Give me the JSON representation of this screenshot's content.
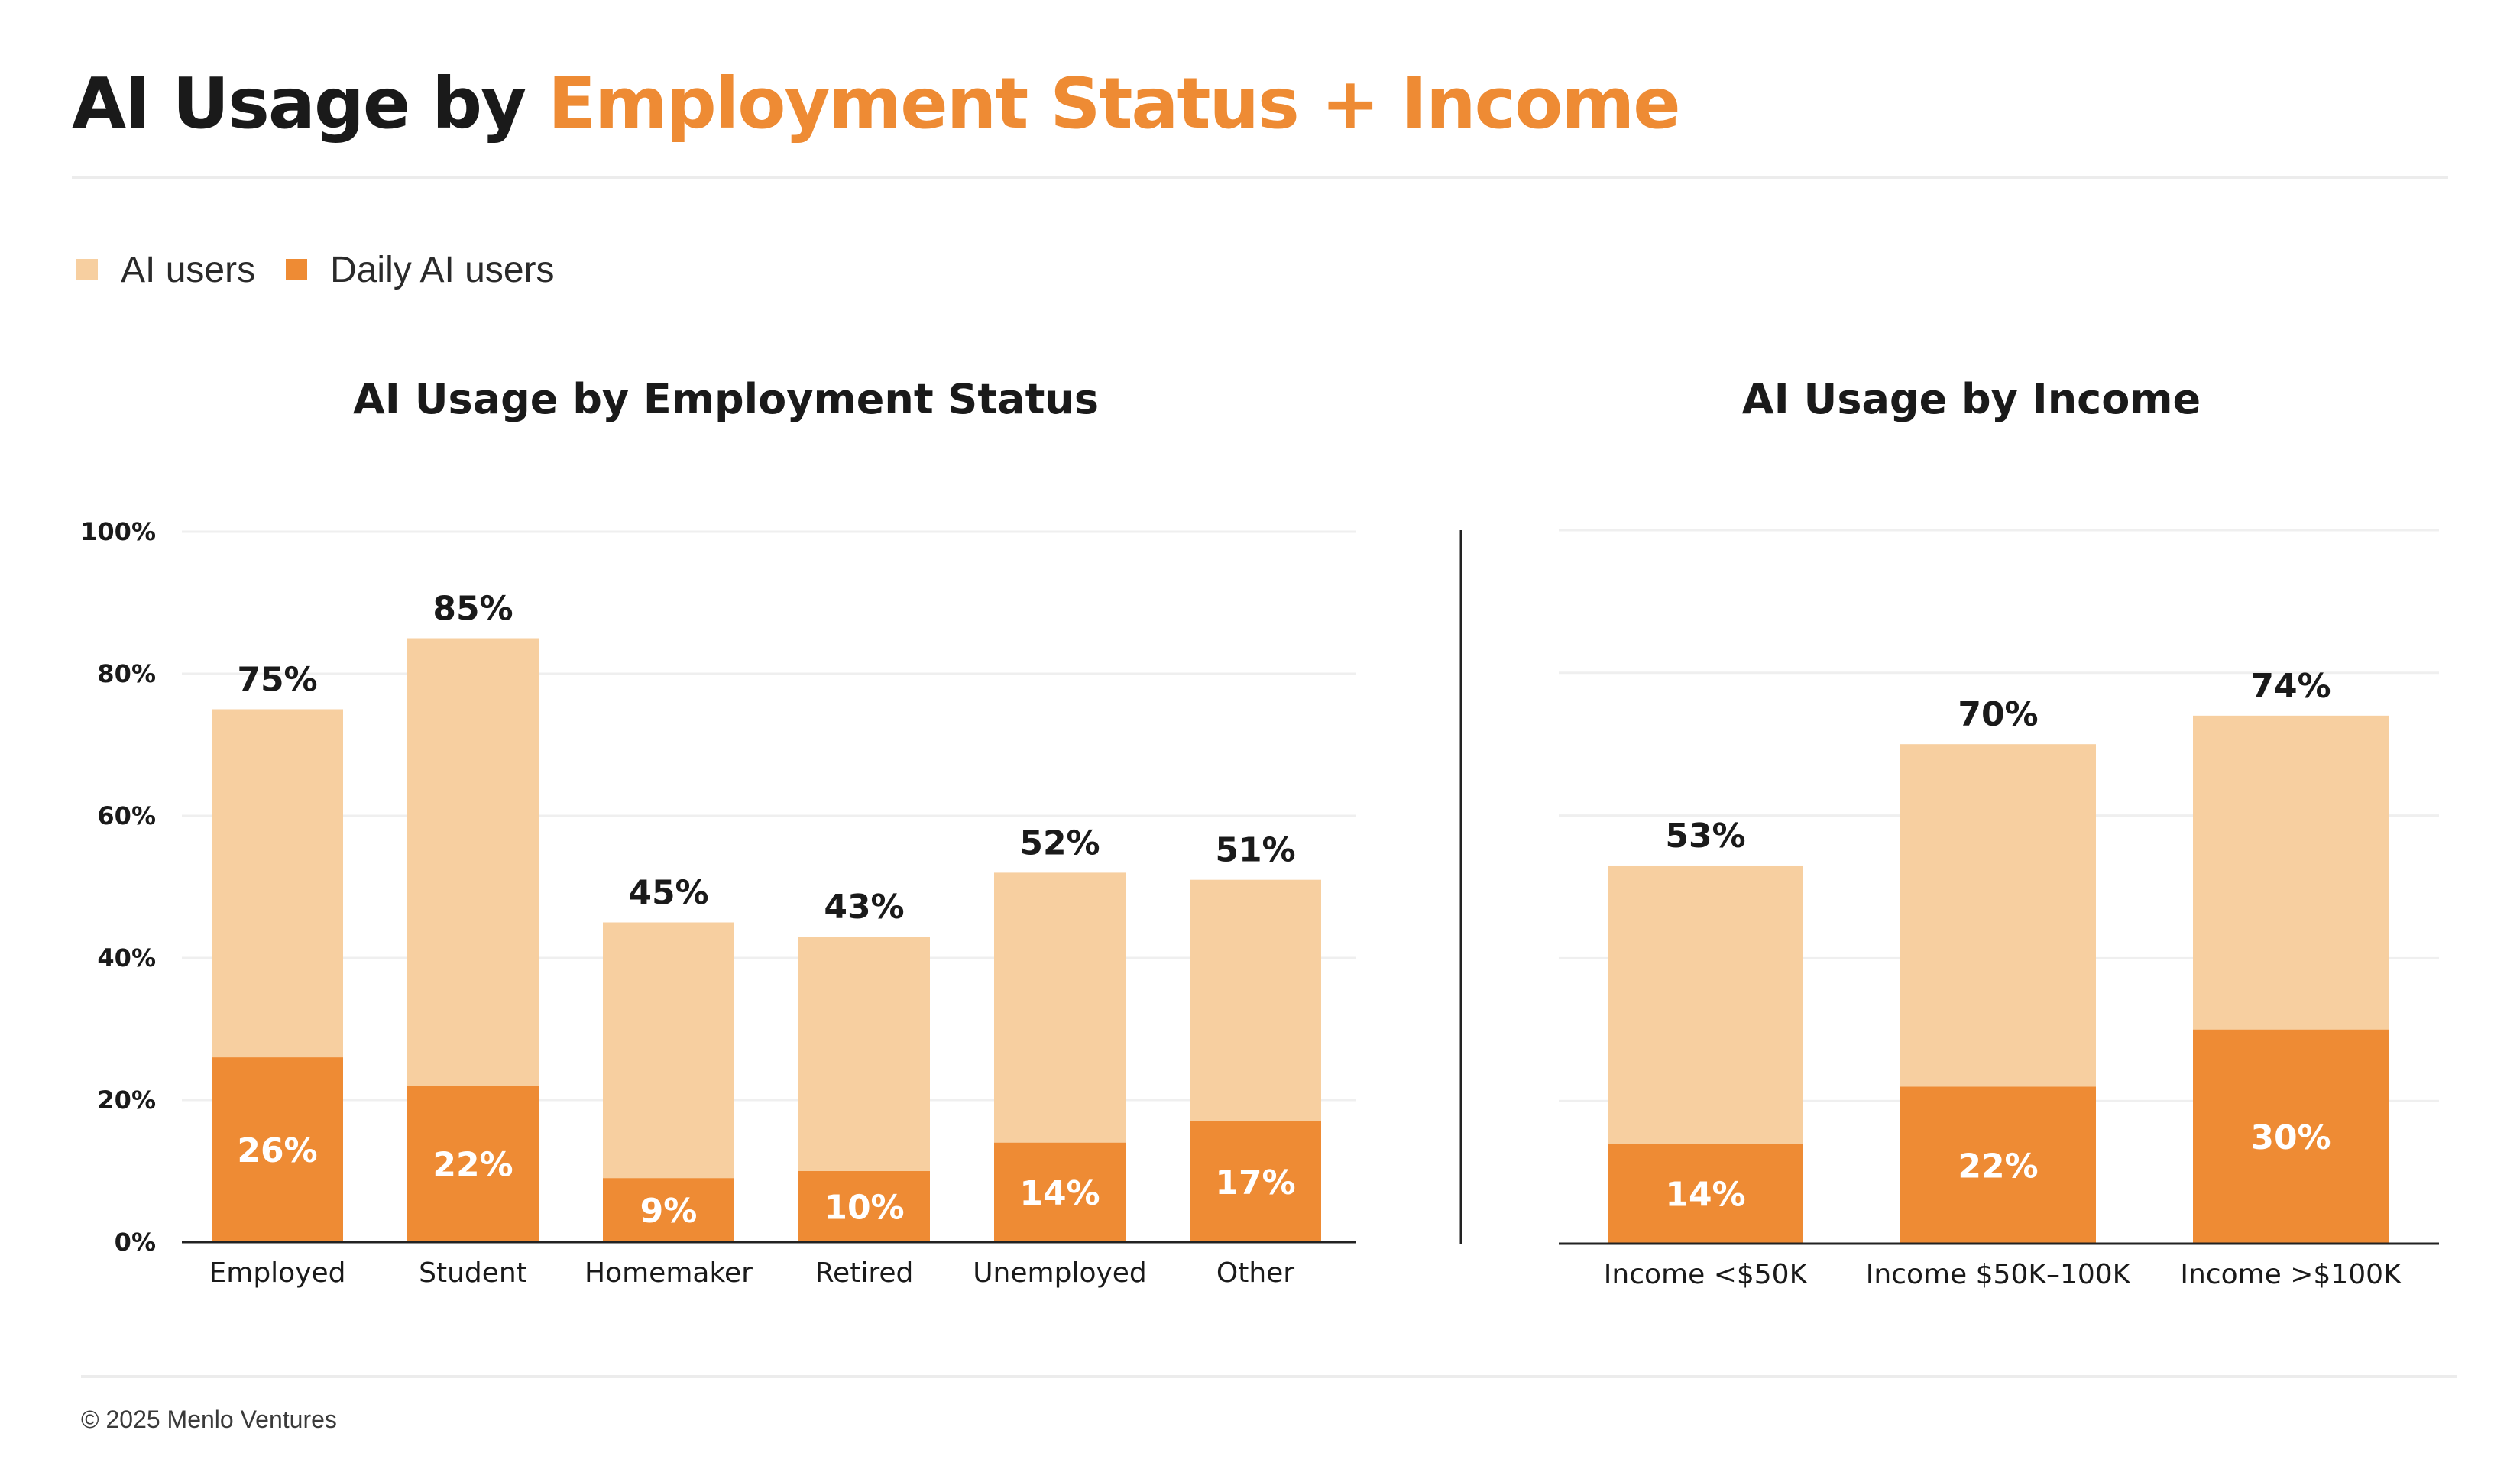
{
  "header": {
    "title_part1": "AI Usage by ",
    "title_part2": "Employment Status + Income"
  },
  "legend": {
    "items": [
      {
        "label": "AI users",
        "color": "#f7cfa0"
      },
      {
        "label": "Daily AI users",
        "color": "#ee8b34"
      }
    ]
  },
  "chart_data": [
    {
      "type": "bar",
      "stacked": false,
      "overlapping_series": true,
      "title": "AI Usage by Employment Status",
      "xlabel": "",
      "ylabel": "",
      "categories": [
        "Employed",
        "Student",
        "Homemaker",
        "Retired",
        "Unemployed",
        "Other"
      ],
      "series": [
        {
          "name": "AI users",
          "color": "#f7cfa0",
          "values": [
            75,
            85,
            45,
            43,
            52,
            51
          ]
        },
        {
          "name": "Daily AI users",
          "color": "#ee8b34",
          "values": [
            26,
            22,
            9,
            10,
            14,
            17
          ]
        }
      ],
      "ylim": [
        0,
        100
      ],
      "yticks": [
        "0%",
        "20%",
        "40%",
        "60%",
        "80%",
        "100%"
      ],
      "value_suffix": "%",
      "grid": true,
      "y_axis_visible": true
    },
    {
      "type": "bar",
      "stacked": false,
      "overlapping_series": true,
      "title": "AI Usage by Income",
      "xlabel": "",
      "ylabel": "",
      "categories": [
        "Income <$50K",
        "Income $50K–100K",
        "Income >$100K"
      ],
      "series": [
        {
          "name": "AI users",
          "color": "#f7cfa0",
          "values": [
            53,
            70,
            74
          ]
        },
        {
          "name": "Daily AI users",
          "color": "#ee8b34",
          "values": [
            14,
            22,
            30
          ]
        }
      ],
      "ylim": [
        0,
        100
      ],
      "value_suffix": "%",
      "grid": true,
      "y_axis_visible": false
    }
  ],
  "footer": {
    "copyright": "© 2025 Menlo Ventures"
  }
}
